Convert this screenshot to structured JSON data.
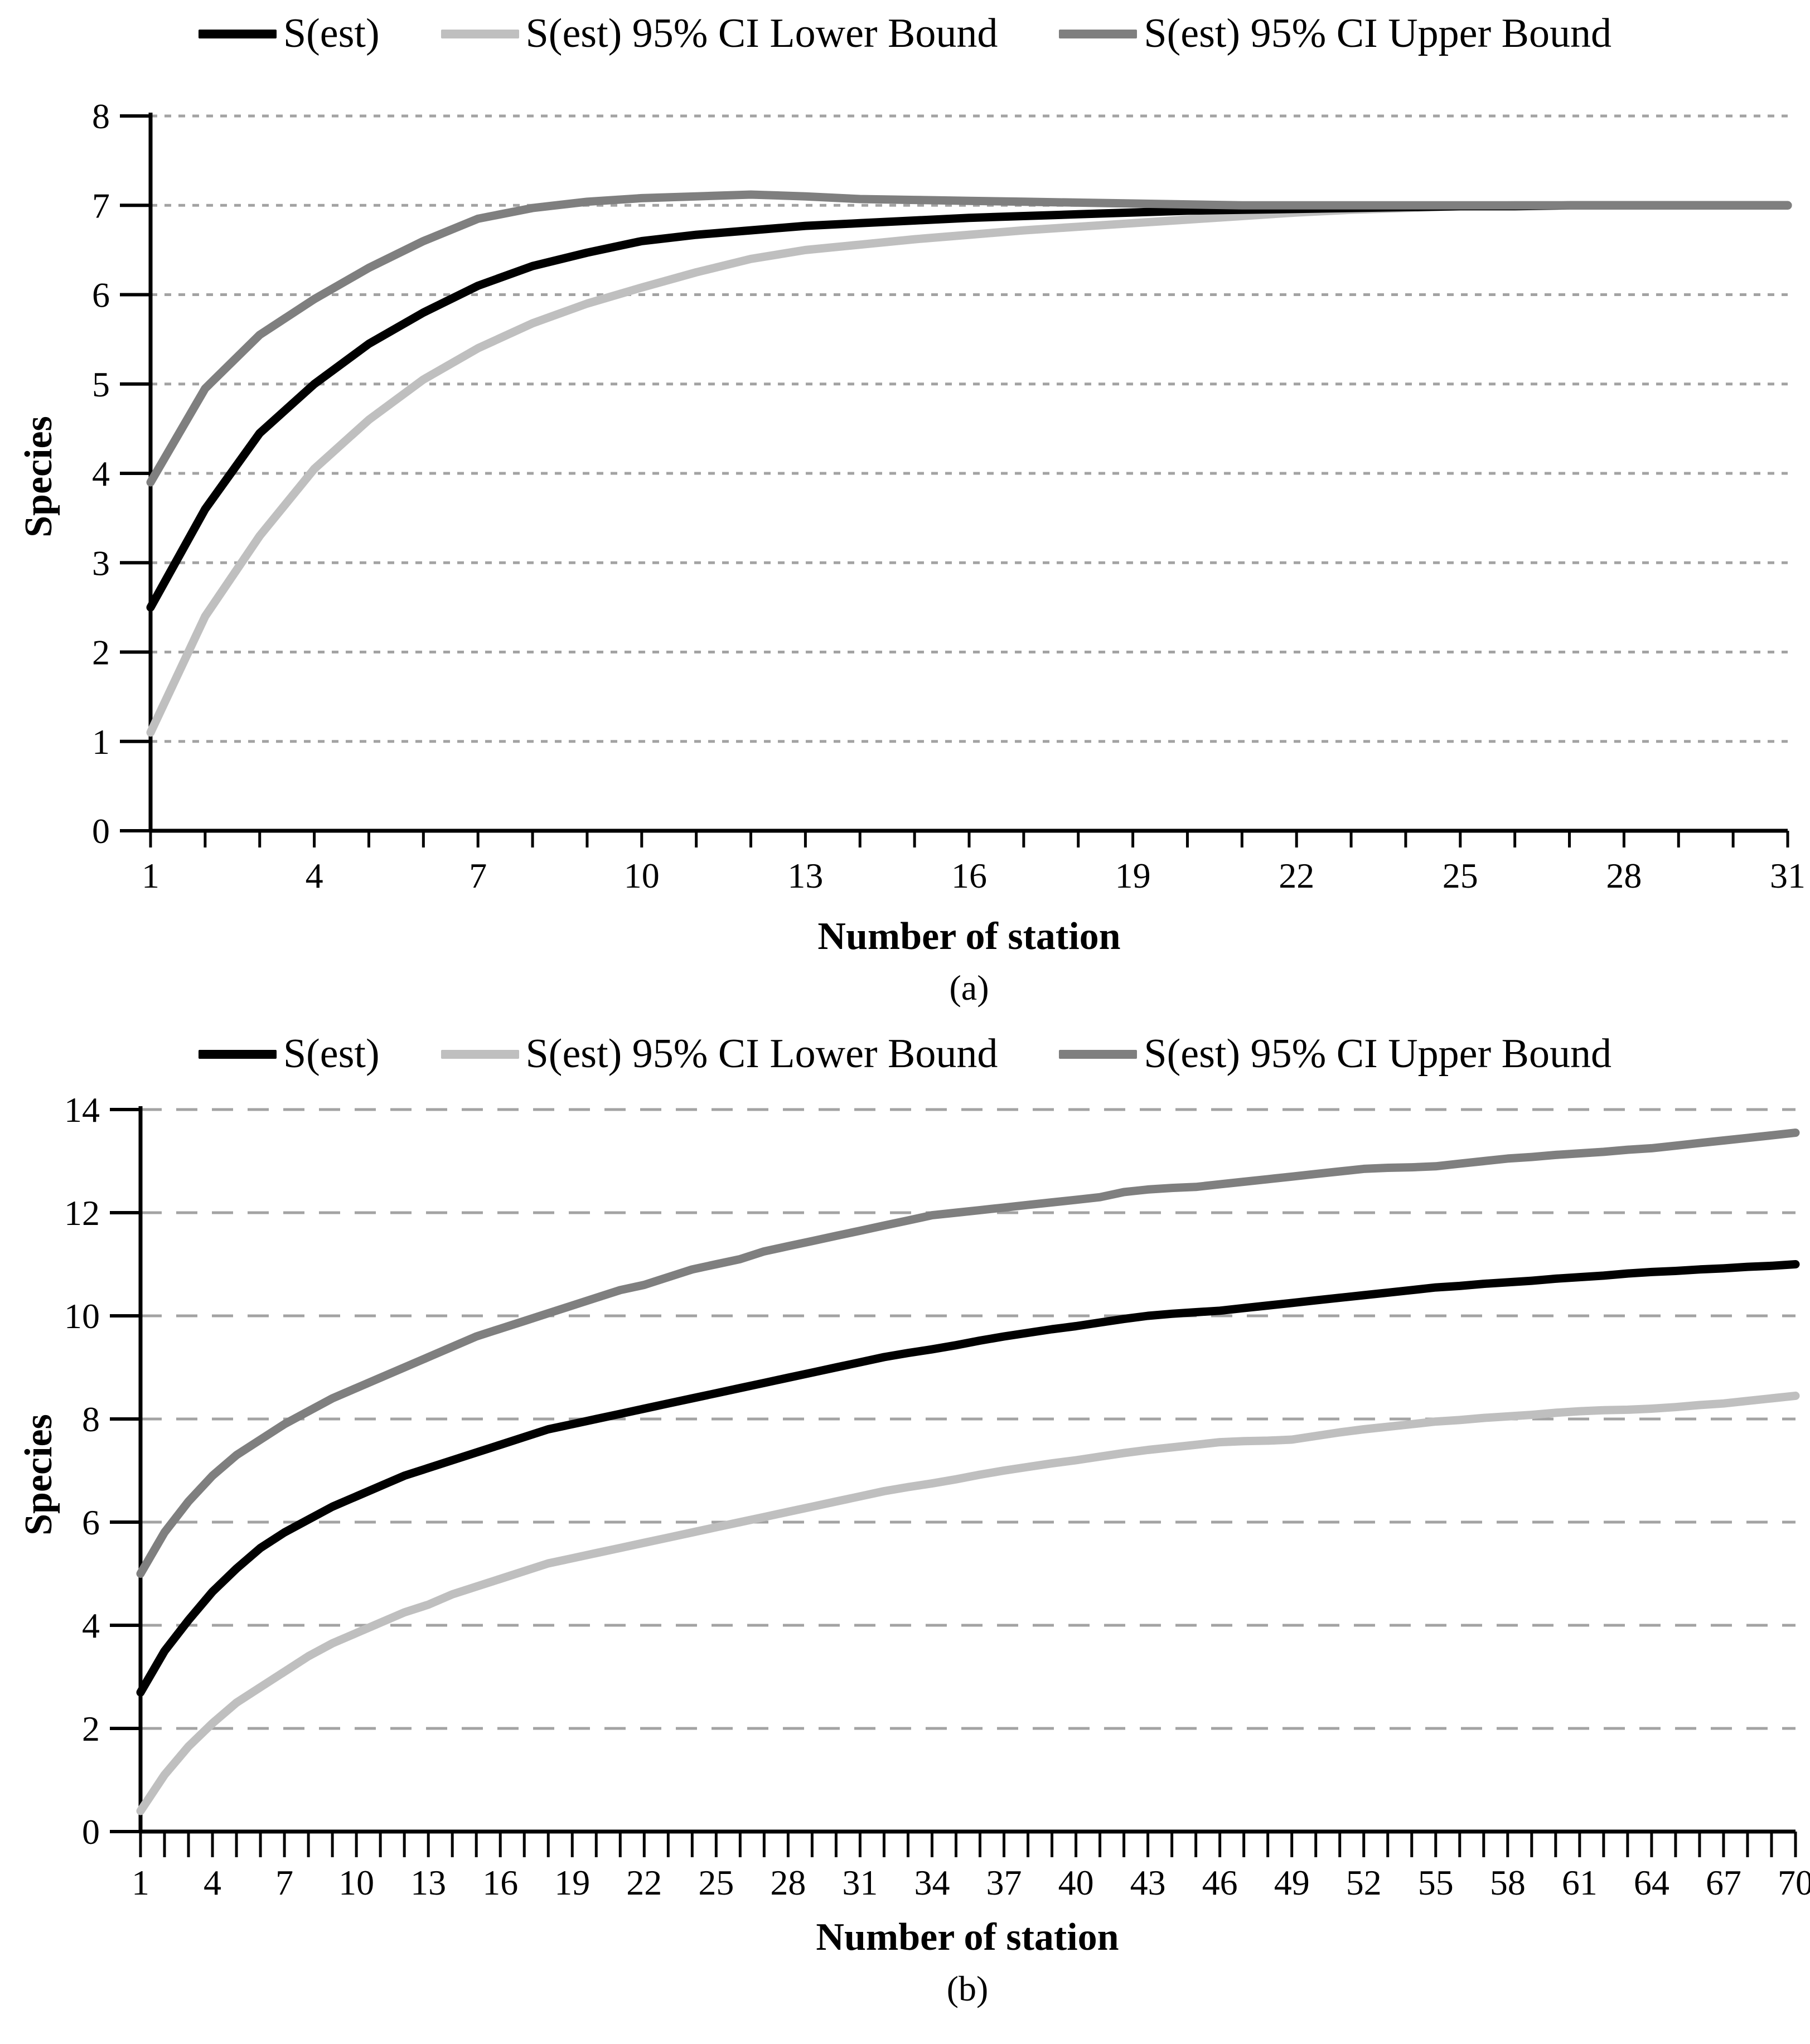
{
  "page": {
    "background": "#ffffff"
  },
  "colors": {
    "sest": "#000000",
    "lower": "#bfbfbf",
    "upper": "#7f7f7f",
    "gridline": "#a3a3a3",
    "axis": "#000000"
  },
  "chart_data": [
    {
      "id": "a",
      "type": "line",
      "caption": "(a)",
      "xlabel": "Number of station",
      "ylabel": "Species",
      "legend_position": "top",
      "grid": "horizontal-dashed",
      "xlim": [
        1,
        31
      ],
      "ylim": [
        0,
        8
      ],
      "ytick_step": 1,
      "ytick_labels": [
        "0",
        "1",
        "2",
        "3",
        "4",
        "5",
        "6",
        "7",
        "8"
      ],
      "x_tick_label_values": [
        1,
        4,
        7,
        10,
        13,
        16,
        19,
        22,
        25,
        28,
        31
      ],
      "x": [
        1,
        2,
        3,
        4,
        5,
        6,
        7,
        8,
        9,
        10,
        11,
        12,
        13,
        14,
        15,
        16,
        17,
        18,
        19,
        20,
        21,
        22,
        23,
        24,
        25,
        26,
        27,
        28,
        29,
        30,
        31
      ],
      "series": [
        {
          "name": "S(est)",
          "color": "#000000",
          "values": [
            2.5,
            3.6,
            4.45,
            5.0,
            5.45,
            5.8,
            6.1,
            6.32,
            6.47,
            6.6,
            6.67,
            6.72,
            6.77,
            6.8,
            6.83,
            6.86,
            6.88,
            6.9,
            6.92,
            6.94,
            6.95,
            6.96,
            6.97,
            6.98,
            6.99,
            6.99,
            7.0,
            7.0,
            7.0,
            7.0,
            7.0
          ]
        },
        {
          "name": "S(est) 95% CI Lower Bound",
          "color": "#bfbfbf",
          "values": [
            1.1,
            2.4,
            3.3,
            4.05,
            4.6,
            5.05,
            5.4,
            5.68,
            5.9,
            6.08,
            6.25,
            6.4,
            6.5,
            6.56,
            6.62,
            6.67,
            6.72,
            6.76,
            6.8,
            6.84,
            6.88,
            6.92,
            6.95,
            6.97,
            6.99,
            7.0,
            7.0,
            7.0,
            7.0,
            7.0,
            7.0
          ]
        },
        {
          "name": "S(est) 95% CI Upper Bound",
          "color": "#7f7f7f",
          "values": [
            3.9,
            4.95,
            5.55,
            5.95,
            6.3,
            6.6,
            6.85,
            6.97,
            7.04,
            7.08,
            7.1,
            7.12,
            7.1,
            7.07,
            7.06,
            7.05,
            7.04,
            7.03,
            7.02,
            7.01,
            7.0,
            7.0,
            7.0,
            7.0,
            7.0,
            7.0,
            7.0,
            7.0,
            7.0,
            7.0,
            7.0
          ]
        }
      ]
    },
    {
      "id": "b",
      "type": "line",
      "caption": "(b)",
      "xlabel": "Number of station",
      "ylabel": "Species",
      "legend_position": "top",
      "grid": "horizontal-dashed",
      "xlim": [
        1,
        70
      ],
      "ylim": [
        0,
        14
      ],
      "ytick_step": 2,
      "ytick_labels": [
        "0",
        "2",
        "4",
        "6",
        "8",
        "10",
        "12",
        "14"
      ],
      "x_tick_label_values": [
        1,
        4,
        7,
        10,
        13,
        16,
        19,
        22,
        25,
        28,
        31,
        34,
        37,
        40,
        43,
        46,
        49,
        52,
        55,
        58,
        61,
        64,
        67,
        70
      ],
      "x": [
        1,
        2,
        3,
        4,
        5,
        6,
        7,
        8,
        9,
        10,
        11,
        12,
        13,
        14,
        15,
        16,
        17,
        18,
        19,
        20,
        21,
        22,
        23,
        24,
        25,
        26,
        27,
        28,
        29,
        30,
        31,
        32,
        33,
        34,
        35,
        36,
        37,
        38,
        39,
        40,
        41,
        42,
        43,
        44,
        45,
        46,
        47,
        48,
        49,
        50,
        51,
        52,
        53,
        54,
        55,
        56,
        57,
        58,
        59,
        60,
        61,
        62,
        63,
        64,
        65,
        66,
        67,
        68,
        69,
        70
      ],
      "series": [
        {
          "name": "S(est)",
          "color": "#000000",
          "values": [
            2.7,
            3.5,
            4.1,
            4.65,
            5.1,
            5.5,
            5.8,
            6.05,
            6.3,
            6.5,
            6.7,
            6.9,
            7.05,
            7.2,
            7.35,
            7.5,
            7.65,
            7.8,
            7.9,
            8.0,
            8.1,
            8.2,
            8.3,
            8.4,
            8.5,
            8.6,
            8.7,
            8.8,
            8.9,
            9.0,
            9.1,
            9.2,
            9.28,
            9.35,
            9.43,
            9.52,
            9.6,
            9.67,
            9.74,
            9.8,
            9.87,
            9.94,
            10.0,
            10.04,
            10.07,
            10.1,
            10.15,
            10.2,
            10.25,
            10.3,
            10.35,
            10.4,
            10.45,
            10.5,
            10.55,
            10.58,
            10.62,
            10.65,
            10.68,
            10.72,
            10.75,
            10.78,
            10.82,
            10.85,
            10.87,
            10.9,
            10.92,
            10.95,
            10.97,
            11.0
          ]
        },
        {
          "name": "S(est) 95% CI Lower Bound",
          "color": "#bfbfbf",
          "values": [
            0.4,
            1.1,
            1.65,
            2.1,
            2.5,
            2.8,
            3.1,
            3.4,
            3.65,
            3.85,
            4.05,
            4.25,
            4.4,
            4.6,
            4.75,
            4.9,
            5.05,
            5.2,
            5.3,
            5.4,
            5.5,
            5.6,
            5.7,
            5.8,
            5.9,
            6.0,
            6.1,
            6.2,
            6.3,
            6.4,
            6.5,
            6.6,
            6.68,
            6.75,
            6.83,
            6.92,
            7.0,
            7.07,
            7.14,
            7.2,
            7.27,
            7.34,
            7.4,
            7.45,
            7.5,
            7.55,
            7.57,
            7.58,
            7.6,
            7.67,
            7.74,
            7.8,
            7.85,
            7.9,
            7.95,
            7.98,
            8.02,
            8.05,
            8.08,
            8.12,
            8.15,
            8.17,
            8.18,
            8.2,
            8.23,
            8.27,
            8.3,
            8.35,
            8.4,
            8.45
          ]
        },
        {
          "name": "S(est) 95% CI Upper Bound",
          "color": "#7f7f7f",
          "values": [
            5.0,
            5.8,
            6.4,
            6.9,
            7.3,
            7.6,
            7.9,
            8.15,
            8.4,
            8.6,
            8.8,
            9.0,
            9.2,
            9.4,
            9.6,
            9.75,
            9.9,
            10.05,
            10.2,
            10.35,
            10.5,
            10.6,
            10.75,
            10.9,
            11.0,
            11.1,
            11.25,
            11.35,
            11.45,
            11.55,
            11.65,
            11.75,
            11.85,
            11.95,
            12.0,
            12.05,
            12.1,
            12.15,
            12.2,
            12.25,
            12.3,
            12.4,
            12.45,
            12.48,
            12.5,
            12.55,
            12.6,
            12.65,
            12.7,
            12.75,
            12.8,
            12.85,
            12.87,
            12.88,
            12.9,
            12.95,
            13.0,
            13.05,
            13.08,
            13.12,
            13.15,
            13.18,
            13.22,
            13.25,
            13.3,
            13.35,
            13.4,
            13.45,
            13.5,
            13.55
          ]
        }
      ]
    }
  ]
}
